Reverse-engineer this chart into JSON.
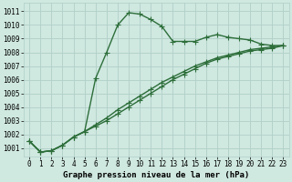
{
  "xlabel": "Graphe pression niveau de la mer (hPa)",
  "xlim": [
    -0.5,
    23.5
  ],
  "ylim": [
    1000.4,
    1011.6
  ],
  "yticks": [
    1001,
    1002,
    1003,
    1004,
    1005,
    1006,
    1007,
    1008,
    1009,
    1010,
    1011
  ],
  "xticks": [
    0,
    1,
    2,
    3,
    4,
    5,
    6,
    7,
    8,
    9,
    10,
    11,
    12,
    13,
    14,
    15,
    16,
    17,
    18,
    19,
    20,
    21,
    22,
    23
  ],
  "background_color": "#cfe8e0",
  "grid_color": "#b0d0c8",
  "line_color": "#2d6e3a",
  "series": [
    [
      1001.5,
      1000.7,
      1000.8,
      1001.2,
      1001.8,
      1002.2,
      1006.1,
      1008.0,
      1010.0,
      1010.9,
      1010.8,
      1010.4,
      1009.9,
      1008.8,
      1008.8,
      1008.8,
      1009.1,
      1009.3,
      1009.1,
      1009.0,
      1008.9,
      1008.6,
      1008.5,
      1008.5
    ],
    [
      1001.5,
      1000.7,
      1000.8,
      1001.2,
      1001.8,
      1002.2,
      1002.7,
      1003.2,
      1003.8,
      1004.3,
      1004.8,
      1005.3,
      1005.8,
      1006.2,
      1006.6,
      1007.0,
      1007.3,
      1007.6,
      1007.8,
      1008.0,
      1008.2,
      1008.3,
      1008.4,
      1008.5
    ],
    [
      1001.5,
      1000.7,
      1000.8,
      1001.2,
      1001.8,
      1002.2,
      1002.6,
      1003.0,
      1003.5,
      1004.0,
      1004.5,
      1005.0,
      1005.5,
      1006.0,
      1006.4,
      1006.8,
      1007.2,
      1007.5,
      1007.7,
      1007.9,
      1008.1,
      1008.2,
      1008.3,
      1008.5
    ]
  ],
  "marker": "+",
  "markersize": 4,
  "linewidth": 1.0,
  "tick_fontsize": 5.5,
  "label_fontsize": 6.5,
  "font_family": "monospace"
}
